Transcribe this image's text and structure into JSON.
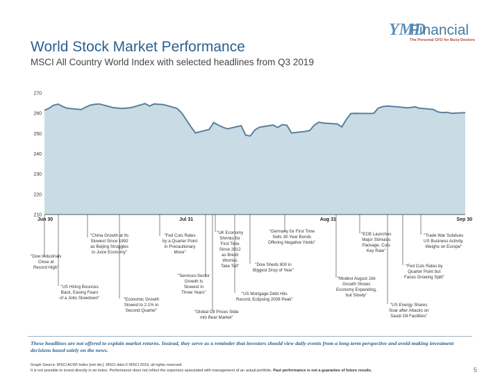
{
  "logo": {
    "mark": "YMD",
    "name": "Financial",
    "tagline": "The Personal CFO for Busy Doctors"
  },
  "header": {
    "title": "World Stock Market Performance",
    "subtitle": "MSCI All Country World Index with selected headlines from Q3 2019"
  },
  "colors": {
    "area_fill": "#c9dce6",
    "line": "#5b7e9a",
    "title": "#2b5f8f"
  },
  "chart_data": {
    "type": "area",
    "title": "",
    "xlabel": "",
    "ylabel": "",
    "ylim": [
      210,
      270
    ],
    "yticks": [
      "270",
      "260",
      "250",
      "240",
      "230",
      "220",
      "210"
    ],
    "ytick_values": [
      270,
      260,
      250,
      240,
      230,
      220,
      210
    ],
    "xtick_labels": [
      "Jun 30",
      "Jul 31",
      "Aug 31",
      "Sep 30"
    ],
    "xtick_days": [
      0,
      31,
      62,
      92
    ],
    "x_days": [
      0,
      1,
      2,
      3,
      4,
      5,
      8,
      9,
      10,
      11,
      12,
      15,
      16,
      17,
      18,
      19,
      22,
      23,
      24,
      25,
      26,
      29,
      30,
      31,
      32,
      33,
      36,
      37,
      38,
      39,
      40,
      43,
      44,
      45,
      46,
      47,
      50,
      51,
      52,
      53,
      54,
      57,
      58,
      59,
      60,
      61,
      64,
      65,
      66,
      67,
      68,
      71,
      72,
      73,
      74,
      75,
      78,
      79,
      80,
      81,
      82,
      85,
      86,
      87,
      88,
      89,
      92
    ],
    "values": [
      261.5,
      262.5,
      264.0,
      264.5,
      263.3,
      262.5,
      261.8,
      263.0,
      264.0,
      264.4,
      264.6,
      262.8,
      262.6,
      262.4,
      262.6,
      262.8,
      264.8,
      263.6,
      264.6,
      264.4,
      264.3,
      262.4,
      260.2,
      256.8,
      253.4,
      250.3,
      252.0,
      255.4,
      254.2,
      253.1,
      252.3,
      253.9,
      249.2,
      248.8,
      251.8,
      253.1,
      254.2,
      253.0,
      254.4,
      254.1,
      250.3,
      251.0,
      251.5,
      254.2,
      255.6,
      255.2,
      254.7,
      253.3,
      256.9,
      259.9,
      260.0,
      259.9,
      260.0,
      262.6,
      263.3,
      263.6,
      263.0,
      262.7,
      262.8,
      263.2,
      262.5,
      261.9,
      260.7,
      260.3,
      260.5,
      260.0,
      260.3
    ]
  },
  "annotations": [
    {
      "text": "\"Dow Industrials\nClose at\nRecord High\""
    },
    {
      "text": "\"US Hiring Bounces\nBack, Easing Fears\nof a Jobs Slowdown\""
    },
    {
      "text": "\"China Growth at Its\nSlowest Since 1992\nas Beijing Struggles\nto Juice Economy\""
    },
    {
      "text": "\"Economic Growth\nSlowed to 2.1% in\nSecond Quarter\""
    },
    {
      "text": "\"Fed Cuts Rates\nby a Quarter Point\nin Precautionary\nMove\""
    },
    {
      "text": "\"Services-Sector\nGrowth Is\nSlowest in\nThree Years\""
    },
    {
      "text": "\"Global Oil Prices Slide\ninto Bear Market\""
    },
    {
      "text": "\"UK Economy\nShrinks for\nFirst Time\nSince 2012\nas Brexit\nWorries\nTake Toll\""
    },
    {
      "text": "\"US Mortgage Debt Hits\nRecord, Eclipsing 2008 Peak\""
    },
    {
      "text": "\"Dow Sheds 800 in\nBiggest Drop of Year\""
    },
    {
      "text": "\"Germany for First Time\nSells 30-Year Bonds\nOffering Negative Yields\""
    },
    {
      "text": "\"Modest August Job\nGrowth Shows\nEconomy Expanding,\nbut Slowly\""
    },
    {
      "text": "\"ECB Launches\nMajor Stimulus\nPackage, Cuts\nKey Rate\""
    },
    {
      "text": "\"US Energy Shares\nSoar after Attacks on\nSaudi Oil Facilities\""
    },
    {
      "text": "\"Fed Cuts Rates by\nQuarter Point but\nFaces Growing Split\""
    },
    {
      "text": "\"Trade War Subdues\nUS Business Activity,\nWeighs on Europe\""
    }
  ],
  "footer": {
    "disclaimer": "These headlines are not offered to explain market returns. Instead, they serve as a reminder that investors should view daily events from a long-term perspective and avoid making investment decisions based solely on the news.",
    "source_line1": "Graph Source: MSCI ACWI Index [net div.]. MSCI data © MSCI 2019, all rights reserved.",
    "source_line2": "It is not possible to invest directly in an index. Performance does not reflect the expenses associated with management of an actual portfolio.",
    "source_bold": "Past performance is not a guarantee of future results.",
    "page_number": "5"
  }
}
